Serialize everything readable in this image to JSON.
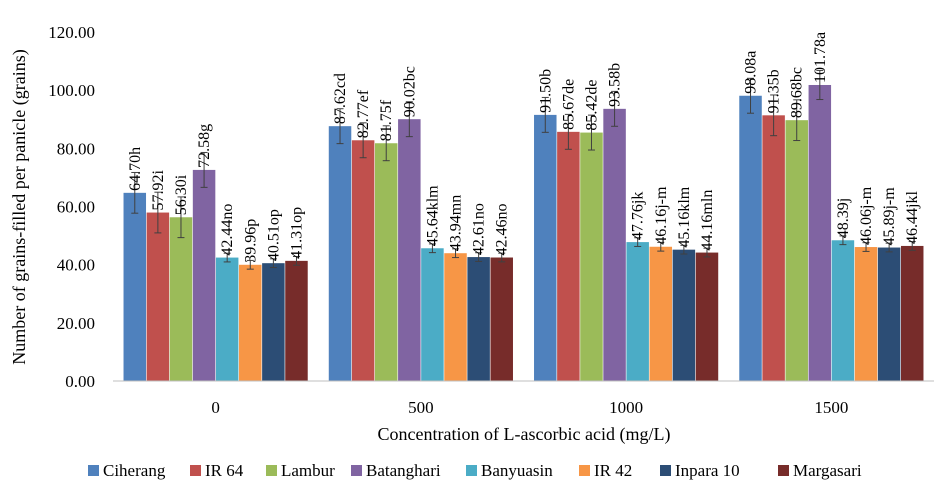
{
  "chart_data": {
    "type": "bar",
    "xlabel": "Concentration of L-ascorbic acid (mg/L)",
    "ylabel": "Number of grains-filled per panicle (grains)",
    "ylim": [
      0,
      120
    ],
    "yticks": [
      "0.00",
      "20.00",
      "40.00",
      "60.00",
      "80.00",
      "100.00",
      "120.00"
    ],
    "grid": false,
    "legend_position": "bottom",
    "error_bars": true,
    "categories": [
      "0",
      "500",
      "1000",
      "1500"
    ],
    "series": [
      {
        "name": "Ciherang",
        "color": "#4F81BD",
        "values": [
          64.7,
          87.62,
          91.5,
          98.08
        ],
        "errors": [
          7,
          6,
          6,
          6
        ],
        "labels": [
          "64.70h",
          "87.62cd",
          "91.50b",
          "98.08a"
        ]
      },
      {
        "name": "IR 64",
        "color": "#C0504D",
        "values": [
          57.92,
          82.77,
          85.67,
          91.35
        ],
        "errors": [
          7,
          6,
          6,
          7
        ],
        "labels": [
          "57.92i",
          "82.77ef",
          "85.67de",
          "91.35b"
        ]
      },
      {
        "name": "Lambur",
        "color": "#9BBB59",
        "values": [
          56.3,
          81.75,
          85.42,
          89.68
        ],
        "errors": [
          7,
          6,
          6,
          7
        ],
        "labels": [
          "56.30i",
          "81.75f",
          "85.42de",
          "89.68bc"
        ]
      },
      {
        "name": "Batanghari",
        "color": "#8064A2",
        "values": [
          72.58,
          90.02,
          93.58,
          101.78
        ],
        "errors": [
          6,
          6,
          6,
          5
        ],
        "labels": [
          "72.58g",
          "90.02bc",
          "93.58b",
          "101.78a"
        ]
      },
      {
        "name": "Banyuasin",
        "color": "#4BACC6",
        "values": [
          42.44,
          45.64,
          47.76,
          48.39
        ],
        "errors": [
          1.5,
          1.5,
          1.5,
          1.5
        ],
        "labels": [
          "42.44no",
          "45.64klm",
          "47.76jk",
          "48.39j"
        ]
      },
      {
        "name": "IR 42",
        "color": "#F79646",
        "values": [
          39.96,
          43.94,
          46.16,
          46.06
        ],
        "errors": [
          1.5,
          1.5,
          1.5,
          1.5
        ],
        "labels": [
          "39.96p",
          "43.94mn",
          "46.16j-m",
          "46.06j-m"
        ]
      },
      {
        "name": "Inpara 10",
        "color": "#2C4D75",
        "values": [
          40.51,
          42.61,
          45.16,
          45.89
        ],
        "errors": [
          1.5,
          1.5,
          1.5,
          1.5
        ],
        "labels": [
          "40.51op",
          "42.61no",
          "45.16klm",
          "45.89j-m"
        ]
      },
      {
        "name": "Margasari",
        "color": "#772C2A",
        "values": [
          41.31,
          42.46,
          44.16,
          46.44
        ],
        "errors": [
          1.5,
          1.5,
          1.5,
          1.5
        ],
        "labels": [
          "41.31op",
          "42.46no",
          "44.16mln",
          "46.44jkl"
        ]
      }
    ]
  }
}
